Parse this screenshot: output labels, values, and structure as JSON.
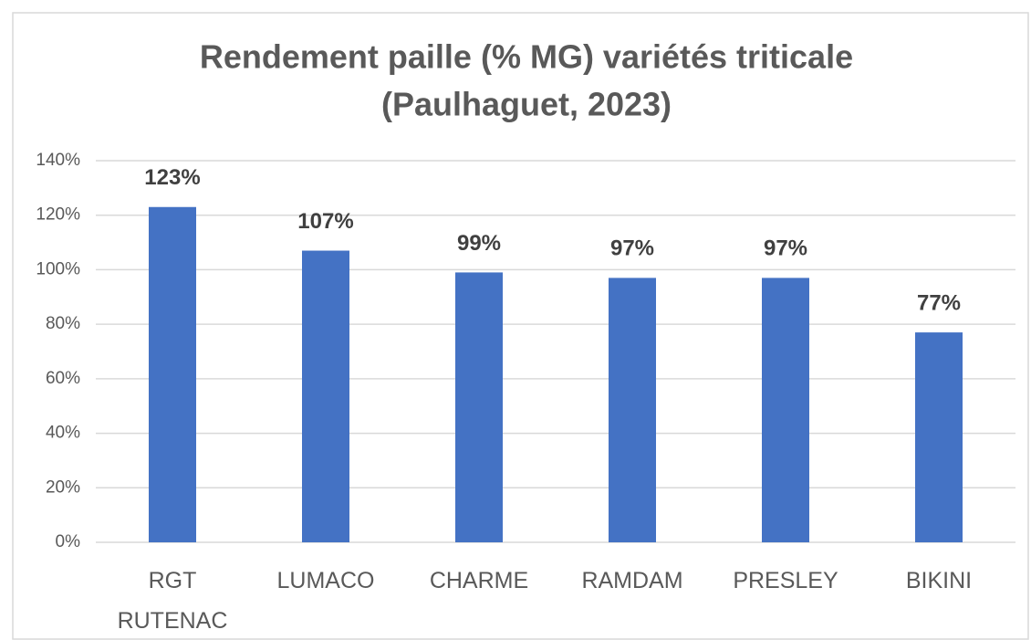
{
  "chart_data": {
    "type": "bar",
    "title": [
      "Rendement paille (% MG) variétés triticale",
      "(Paulhaguet, 2023)"
    ],
    "categories": [
      "RGT RUTENAC",
      "LUMACO",
      "CHARME",
      "RAMDAM",
      "PRESLEY",
      "BIKINI"
    ],
    "values": [
      123,
      107,
      99,
      97,
      97,
      77
    ],
    "value_labels": [
      "123%",
      "107%",
      "99%",
      "97%",
      "97%",
      "77%"
    ],
    "color": "#4472c4",
    "ylim": [
      0,
      140
    ],
    "yticks": [
      {
        "value": 0,
        "label": "0%"
      },
      {
        "value": 20,
        "label": "20%"
      },
      {
        "value": 40,
        "label": "40%"
      },
      {
        "value": 60,
        "label": "60%"
      },
      {
        "value": 80,
        "label": "80%"
      },
      {
        "value": 100,
        "label": "100%"
      },
      {
        "value": 120,
        "label": "120%"
      },
      {
        "value": 140,
        "label": "140%"
      }
    ],
    "grid": true
  }
}
